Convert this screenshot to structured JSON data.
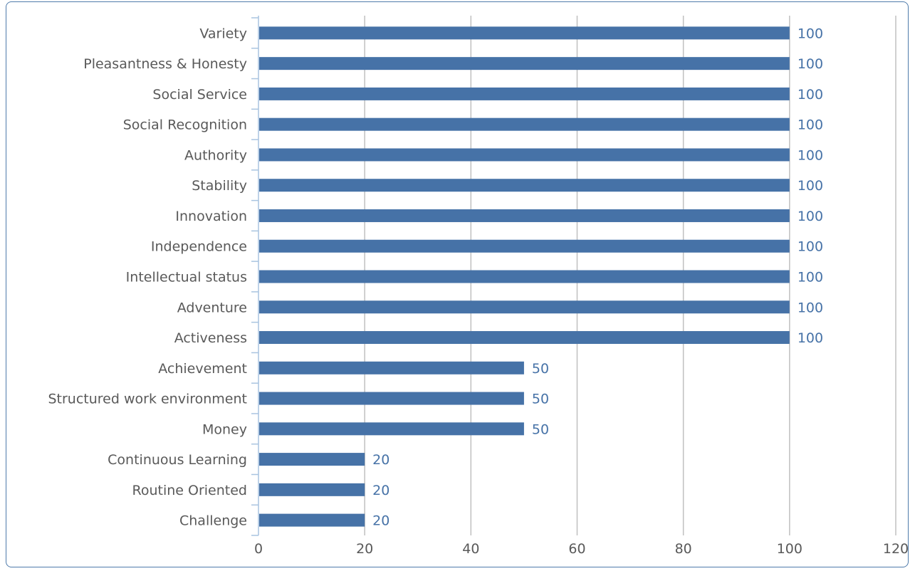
{
  "chart_data": {
    "type": "bar",
    "orientation": "horizontal",
    "categories": [
      "Variety",
      "Pleasantness & Honesty",
      "Social Service",
      "Social Recognition",
      "Authority",
      "Stability",
      "Innovation",
      "Independence",
      "Intellectual status",
      "Adventure",
      "Activeness",
      "Achievement",
      "Structured work environment",
      "Money",
      "Continuous Learning",
      "Routine Oriented",
      "Challenge"
    ],
    "values": [
      100,
      100,
      100,
      100,
      100,
      100,
      100,
      100,
      100,
      100,
      100,
      50,
      50,
      50,
      20,
      20,
      20
    ],
    "xlim": [
      0,
      120
    ],
    "xticks": [
      0,
      20,
      40,
      60,
      80,
      100,
      120
    ],
    "grid": "vertical",
    "data_labels": true,
    "legend": "none",
    "title": "",
    "xlabel": "",
    "ylabel": "",
    "colors": {
      "bar": "#4672a7",
      "data_label": "#4672a7",
      "grid": "#c0c0c0",
      "axis": "#a9c4e0",
      "text": "#595959"
    }
  }
}
